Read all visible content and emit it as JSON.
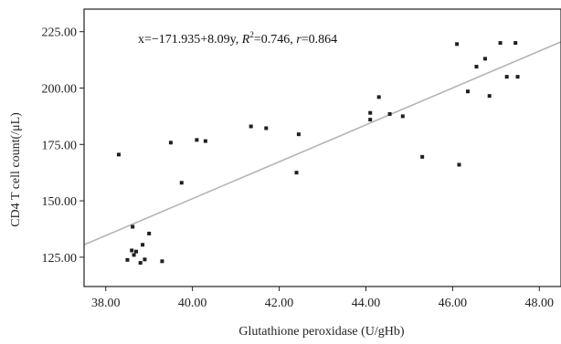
{
  "chart_data": {
    "type": "scatter",
    "title": "",
    "xlabel": "Glutathione peroxidase (U/gHb)",
    "ylabel": "CD4 T cell count(/μL)",
    "annotation": {
      "equation": "x=−171.935+8.09y, ",
      "r2_symbol": "R",
      "r2_sup": "2",
      "r2_value": "=0.746, ",
      "r_symbol": "r",
      "r_value": "=0.864"
    },
    "xlim": [
      37.5,
      48.5
    ],
    "ylim": [
      112,
      235
    ],
    "xticks": [
      38,
      40,
      42,
      44,
      46,
      48
    ],
    "xtick_labels": [
      "38.00",
      "40.00",
      "42.00",
      "44.00",
      "46.00",
      "48.00"
    ],
    "yticks": [
      125,
      150,
      175,
      200,
      225
    ],
    "ytick_labels": [
      "125.00",
      "150.00",
      "175.00",
      "200.00",
      "225.00"
    ],
    "grid": false,
    "series": [
      {
        "points": [
          {
            "x": 38.3,
            "y": 170.5
          },
          {
            "x": 38.5,
            "y": 123.8
          },
          {
            "x": 38.6,
            "y": 128.0
          },
          {
            "x": 38.62,
            "y": 138.5
          },
          {
            "x": 38.65,
            "y": 126.0
          },
          {
            "x": 38.7,
            "y": 127.5
          },
          {
            "x": 38.8,
            "y": 122.5
          },
          {
            "x": 38.85,
            "y": 130.5
          },
          {
            "x": 38.9,
            "y": 124.0
          },
          {
            "x": 39.0,
            "y": 135.5
          },
          {
            "x": 39.3,
            "y": 123.2
          },
          {
            "x": 39.5,
            "y": 175.8
          },
          {
            "x": 39.75,
            "y": 158.0
          },
          {
            "x": 40.1,
            "y": 177.0
          },
          {
            "x": 40.3,
            "y": 176.5
          },
          {
            "x": 41.35,
            "y": 183.0
          },
          {
            "x": 41.7,
            "y": 182.2
          },
          {
            "x": 42.4,
            "y": 162.5
          },
          {
            "x": 42.45,
            "y": 179.5
          },
          {
            "x": 44.1,
            "y": 186.0
          },
          {
            "x": 44.1,
            "y": 189.0
          },
          {
            "x": 44.3,
            "y": 196.0
          },
          {
            "x": 44.55,
            "y": 188.5
          },
          {
            "x": 44.85,
            "y": 187.5
          },
          {
            "x": 45.3,
            "y": 169.5
          },
          {
            "x": 46.1,
            "y": 219.5
          },
          {
            "x": 46.15,
            "y": 166.0
          },
          {
            "x": 46.35,
            "y": 198.5
          },
          {
            "x": 46.55,
            "y": 209.5
          },
          {
            "x": 46.75,
            "y": 213.0
          },
          {
            "x": 46.85,
            "y": 196.5
          },
          {
            "x": 47.1,
            "y": 220.0
          },
          {
            "x": 47.25,
            "y": 205.0
          },
          {
            "x": 47.45,
            "y": 220.0
          },
          {
            "x": 47.5,
            "y": 205.0
          }
        ]
      }
    ],
    "fit_line": {
      "x": [
        37.5,
        48.5
      ],
      "y": [
        130.5,
        220.5
      ]
    },
    "colors": {
      "marker": "#1f1f1f",
      "fit_line": "#b4b4b4",
      "frame": "#222222"
    }
  }
}
